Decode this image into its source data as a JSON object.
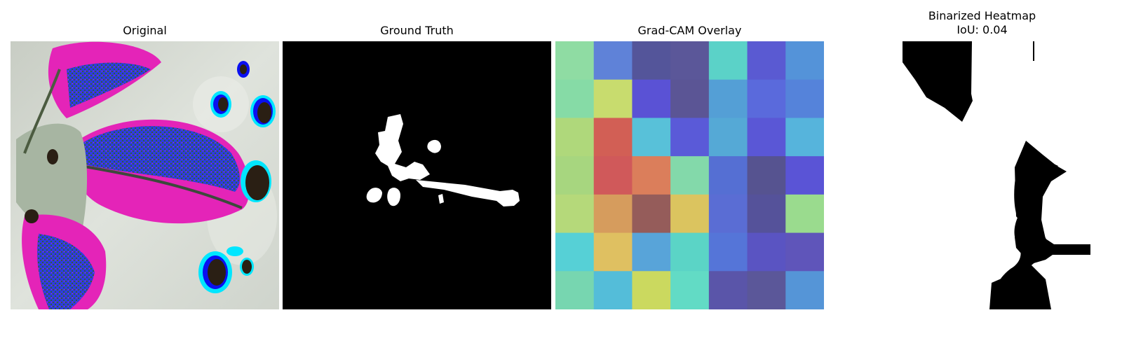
{
  "panels": [
    {
      "title": "Original"
    },
    {
      "title": "Ground Truth"
    },
    {
      "title": "Grad-CAM Overlay"
    },
    {
      "title": "Binarized Heatmap",
      "subtitle": "IoU: 0.04"
    }
  ],
  "gradcam": {
    "rows": 7,
    "cols": 7,
    "cells": [
      [
        "#8fdca3",
        "#5f82d8",
        "#54559a",
        "#5b5799",
        "#5bd2c8",
        "#5a5ad2",
        "#5493d9"
      ],
      [
        "#86dba6",
        "#c8dc6e",
        "#5a52d5",
        "#5b5595",
        "#549fd6",
        "#5a6adc",
        "#5583da"
      ],
      [
        "#afd87b",
        "#d25f55",
        "#58c1d9",
        "#5a5ad8",
        "#55a9d6",
        "#5a57d6",
        "#56b4dc"
      ],
      [
        "#a7d67f",
        "#d0595a",
        "#db7e5b",
        "#83d9aa",
        "#556fd3",
        "#565390",
        "#5a54d6"
      ],
      [
        "#b5d97a",
        "#d69c5d",
        "#955c5a",
        "#dbc45f",
        "#5a6dd4",
        "#55529a",
        "#9adb8e"
      ],
      [
        "#56d0d6",
        "#dfc061",
        "#58a4d9",
        "#5bd4c6",
        "#5575d8",
        "#5a54c2",
        "#5f55ba"
      ],
      [
        "#77d6b0",
        "#54bdd9",
        "#cbd95f",
        "#62dbc5",
        "#5a55a9",
        "#5b5799",
        "#5595d7"
      ]
    ]
  }
}
